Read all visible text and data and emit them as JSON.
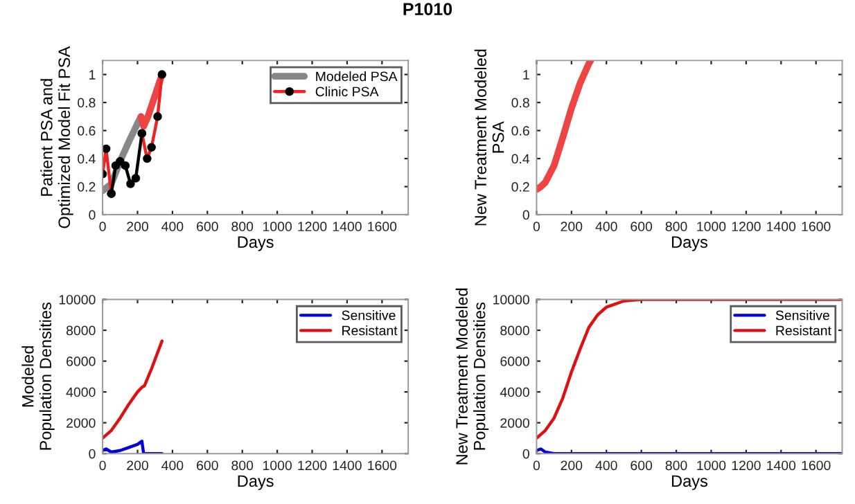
{
  "chart_data": [
    {
      "type": "line",
      "title": "P1010",
      "xlabel": "Days",
      "ylabel": "Patient PSA and\nOptimized Model Fit PSA",
      "xlim": [
        0,
        1750
      ],
      "xticks": [
        0,
        200,
        400,
        600,
        800,
        1000,
        1200,
        1400,
        1600
      ],
      "ylim": [
        0,
        1.1
      ],
      "yticks": [
        0,
        0.2,
        0.4,
        0.6,
        0.8,
        1
      ],
      "legend": "top right",
      "series": [
        {
          "name": "Modeled PSA",
          "color": "#888888",
          "x": [
            0,
            50,
            100,
            150,
            200,
            220
          ],
          "values": [
            0.17,
            0.22,
            0.38,
            0.52,
            0.65,
            0.7
          ]
        },
        {
          "color": "#ee4444",
          "x": [
            220,
            235,
            260,
            300,
            340
          ],
          "values": [
            0.7,
            0.63,
            0.7,
            0.85,
            1.0
          ]
        },
        {
          "name": "Clinic PSA",
          "color": "#ee2222",
          "marker": "circle",
          "x": [
            0,
            20,
            50,
            137,
            225,
            255,
            280,
            315,
            340
          ],
          "values": [
            0.29,
            0.47,
            0.15,
            null,
            0.58,
            0.4,
            0.48,
            0.7,
            1.0
          ]
        },
        {
          "color": "#000000",
          "marker": "circle",
          "x": [
            50,
            75,
            100,
            130,
            160,
            190,
            225
          ],
          "values": [
            0.15,
            0.35,
            0.38,
            0.35,
            0.22,
            0.26,
            0.58
          ]
        }
      ]
    },
    {
      "type": "line",
      "xlabel": "Days",
      "ylabel": "New Treatment Modeled\nPSA",
      "xlim": [
        0,
        1750
      ],
      "xticks": [
        0,
        200,
        400,
        600,
        800,
        1000,
        1200,
        1400,
        1600
      ],
      "ylim": [
        0,
        1.1
      ],
      "yticks": [
        0,
        0.2,
        0.4,
        0.6,
        0.8,
        1
      ],
      "series": [
        {
          "color": "#ee4444",
          "x": [
            0,
            25,
            50,
            100,
            150,
            200,
            250,
            300,
            310
          ],
          "values": [
            0.18,
            0.2,
            0.23,
            0.35,
            0.55,
            0.76,
            0.94,
            1.08,
            1.1
          ]
        }
      ]
    },
    {
      "type": "line",
      "xlabel": "Days",
      "ylabel": "Modeled\nPopulation Densities",
      "xlim": [
        0,
        1750
      ],
      "xticks": [
        0,
        200,
        400,
        600,
        800,
        1000,
        1200,
        1400,
        1600
      ],
      "ylim": [
        0,
        10000
      ],
      "yticks": [
        0,
        2000,
        4000,
        6000,
        8000,
        10000
      ],
      "legend": "top right",
      "series": [
        {
          "name": "Sensitive",
          "color": "#0000dd",
          "x": [
            0,
            20,
            50,
            100,
            150,
            200,
            225,
            235,
            340
          ],
          "values": [
            200,
            300,
            100,
            200,
            400,
            600,
            800,
            0,
            0
          ]
        },
        {
          "name": "Resistant",
          "color": "#dd1111",
          "x": [
            0,
            50,
            100,
            150,
            200,
            225,
            240,
            280,
            340
          ],
          "values": [
            1000,
            1500,
            2300,
            3200,
            4000,
            4300,
            4400,
            5500,
            7300
          ]
        }
      ]
    },
    {
      "type": "line",
      "xlabel": "Days",
      "ylabel": "New Treatment Modeled\nPopulation Densities",
      "xlim": [
        0,
        1750
      ],
      "xticks": [
        0,
        200,
        400,
        600,
        800,
        1000,
        1200,
        1400,
        1600
      ],
      "ylim": [
        0,
        10000
      ],
      "yticks": [
        0,
        2000,
        4000,
        6000,
        8000,
        10000
      ],
      "legend": "top right",
      "series": [
        {
          "name": "Sensitive",
          "color": "#0000dd",
          "x": [
            0,
            25,
            50,
            100,
            200,
            1750
          ],
          "values": [
            200,
            300,
            100,
            0,
            0,
            0
          ]
        },
        {
          "name": "Resistant",
          "color": "#dd1111",
          "x": [
            0,
            50,
            100,
            150,
            200,
            250,
            300,
            350,
            400,
            500,
            600,
            1750
          ],
          "values": [
            1000,
            1500,
            2300,
            3600,
            5300,
            6800,
            8200,
            9000,
            9500,
            9900,
            10000,
            10000
          ]
        }
      ]
    }
  ]
}
